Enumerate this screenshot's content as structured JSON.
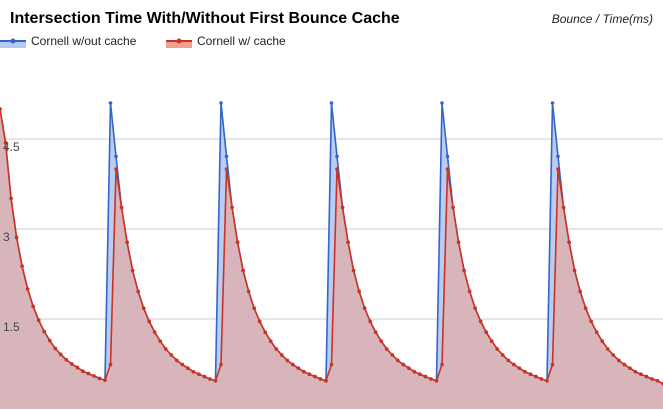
{
  "chart_data": {
    "type": "area",
    "title": "Intersection Time With/Without First Bounce Cache",
    "xlabel": "",
    "ylabel": "Bounce / Time(ms)",
    "ylim": [
      0,
      5.9
    ],
    "yticks": [
      "1.5",
      "3",
      "4.5"
    ],
    "ytick_values": [
      1.5,
      3,
      4.5
    ],
    "grid": true,
    "legend_position": "top-left",
    "series": [
      {
        "name": "Cornell w/out cache",
        "color": "#3366cc",
        "fill": "#b6c9ee",
        "values": [
          5.0,
          4.44,
          3.51,
          2.86,
          2.38,
          2.0,
          1.71,
          1.48,
          1.29,
          1.14,
          1.01,
          0.91,
          0.82,
          0.75,
          0.69,
          0.63,
          0.59,
          0.55,
          0.51,
          0.48,
          5.1,
          4.21,
          3.36,
          2.78,
          2.31,
          1.96,
          1.68,
          1.46,
          1.28,
          1.13,
          1.0,
          0.9,
          0.81,
          0.74,
          0.68,
          0.62,
          0.58,
          0.54,
          0.5,
          0.47,
          5.1,
          4.21,
          3.36,
          2.78,
          2.31,
          1.96,
          1.68,
          1.46,
          1.28,
          1.13,
          1.0,
          0.9,
          0.81,
          0.74,
          0.68,
          0.62,
          0.58,
          0.54,
          0.5,
          0.47,
          5.1,
          4.21,
          3.36,
          2.78,
          2.31,
          1.96,
          1.68,
          1.46,
          1.28,
          1.13,
          1.0,
          0.9,
          0.81,
          0.74,
          0.68,
          0.62,
          0.58,
          0.54,
          0.5,
          0.47,
          5.1,
          4.21,
          3.36,
          2.78,
          2.31,
          1.96,
          1.68,
          1.46,
          1.28,
          1.13,
          1.0,
          0.9,
          0.81,
          0.74,
          0.68,
          0.62,
          0.58,
          0.54,
          0.5,
          0.47,
          5.1,
          4.21,
          3.36,
          2.78,
          2.31,
          1.96,
          1.68,
          1.46,
          1.28,
          1.13,
          1.0,
          0.9,
          0.81,
          0.74,
          0.68,
          0.62,
          0.58,
          0.54,
          0.5,
          0.47,
          0.42
        ]
      },
      {
        "name": "Cornell w/ cache",
        "color": "#cc3322",
        "fill": "#f0a090",
        "values": [
          5.0,
          4.44,
          3.51,
          2.86,
          2.38,
          2.0,
          1.71,
          1.48,
          1.29,
          1.14,
          1.01,
          0.91,
          0.82,
          0.75,
          0.69,
          0.63,
          0.59,
          0.55,
          0.51,
          0.48,
          0.74,
          4.0,
          3.36,
          2.78,
          2.31,
          1.96,
          1.68,
          1.46,
          1.28,
          1.13,
          1.0,
          0.9,
          0.81,
          0.74,
          0.68,
          0.62,
          0.58,
          0.54,
          0.5,
          0.47,
          0.74,
          4.0,
          3.36,
          2.78,
          2.31,
          1.96,
          1.68,
          1.46,
          1.28,
          1.13,
          1.0,
          0.9,
          0.81,
          0.74,
          0.68,
          0.62,
          0.58,
          0.54,
          0.5,
          0.47,
          0.74,
          4.0,
          3.36,
          2.78,
          2.31,
          1.96,
          1.68,
          1.46,
          1.28,
          1.13,
          1.0,
          0.9,
          0.81,
          0.74,
          0.68,
          0.62,
          0.58,
          0.54,
          0.5,
          0.47,
          0.74,
          4.0,
          3.36,
          2.78,
          2.31,
          1.96,
          1.68,
          1.46,
          1.28,
          1.13,
          1.0,
          0.9,
          0.81,
          0.74,
          0.68,
          0.62,
          0.58,
          0.54,
          0.5,
          0.47,
          0.74,
          4.0,
          3.36,
          2.78,
          2.31,
          1.96,
          1.68,
          1.46,
          1.28,
          1.13,
          1.0,
          0.9,
          0.81,
          0.74,
          0.68,
          0.62,
          0.58,
          0.54,
          0.5,
          0.47,
          0.42
        ]
      }
    ]
  }
}
